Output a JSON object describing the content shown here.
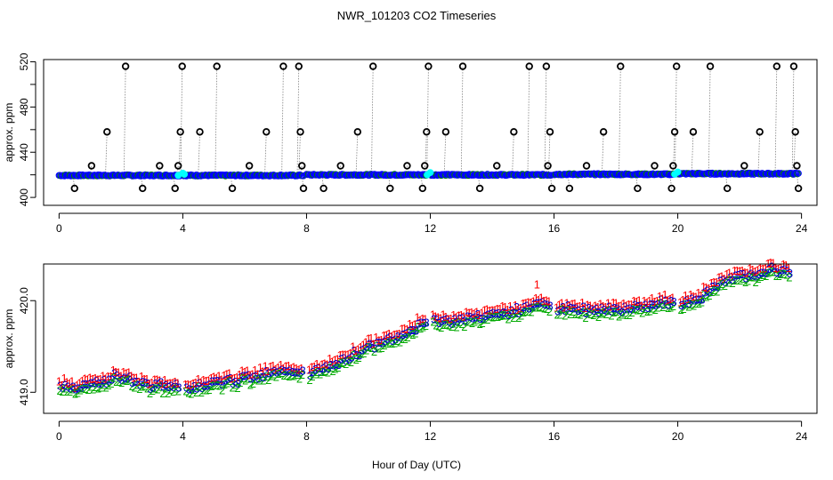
{
  "title": "NWR_101203  CO2 Timeseries",
  "xlabel": "Hour of Day (UTC)",
  "colors": {
    "sample_circle": "#000000",
    "trace_line": "#808080",
    "points_a": "#0000ff",
    "points_b": "#00ffff",
    "points_c": "#008000",
    "label_1": "#ff0000",
    "label_2": "#00aa00",
    "label_3": "#0000cc"
  },
  "chart_data": [
    {
      "type": "scatter",
      "panel": "top",
      "ylabel": "approx. ppm",
      "xlim": [
        -0.5,
        24.5
      ],
      "ylim": [
        393,
        522
      ],
      "x_ticks": [
        0,
        4,
        8,
        12,
        16,
        20,
        24
      ],
      "x_tick_labels": [
        "0",
        "4",
        "8",
        "12",
        "16",
        "20",
        "24"
      ],
      "y_ticks": [
        400,
        420,
        440,
        460,
        480,
        500,
        520
      ],
      "y_tick_labels": [
        "400",
        "",
        "440",
        "",
        "480",
        "",
        "520"
      ],
      "baseline_segments": [
        {
          "x_start": 0.0,
          "x_end": 3.9,
          "y": 419.5
        },
        {
          "x_start": 4.0,
          "x_end": 7.9,
          "y": 419.5
        },
        {
          "x_start": 8.0,
          "x_end": 11.9,
          "y": 420.0
        },
        {
          "x_start": 12.0,
          "x_end": 15.9,
          "y": 420.0
        },
        {
          "x_start": 16.0,
          "x_end": 19.9,
          "y": 420.5
        },
        {
          "x_start": 20.0,
          "x_end": 23.9,
          "y": 421.0
        }
      ],
      "sample_circles": {
        "x": [
          0.5,
          1.05,
          1.55,
          2.15,
          2.7,
          3.25,
          3.75,
          3.85,
          3.92,
          3.98,
          4.55,
          5.1,
          5.6,
          6.15,
          6.7,
          7.25,
          7.75,
          7.8,
          7.85,
          7.9,
          8.55,
          9.1,
          9.65,
          10.15,
          10.7,
          11.25,
          11.75,
          11.82,
          11.88,
          11.94,
          12.5,
          13.05,
          13.6,
          14.15,
          14.7,
          15.2,
          15.75,
          15.8,
          15.87,
          15.93,
          16.5,
          17.05,
          17.6,
          18.15,
          18.7,
          19.25,
          19.8,
          19.85,
          19.9,
          19.96,
          20.5,
          21.05,
          21.6,
          22.15,
          22.65,
          23.2,
          23.75,
          23.8,
          23.85,
          23.9
        ],
        "y": [
          408,
          428,
          458,
          516,
          408,
          428,
          408,
          428,
          458,
          516,
          458,
          516,
          408,
          428,
          458,
          516,
          516,
          458,
          428,
          408,
          408,
          428,
          458,
          516,
          408,
          428,
          408,
          428,
          458,
          516,
          458,
          516,
          408,
          428,
          458,
          516,
          516,
          428,
          458,
          408,
          408,
          428,
          458,
          516,
          408,
          428,
          408,
          428,
          458,
          516,
          458,
          516,
          408,
          428,
          458,
          516,
          516,
          458,
          428,
          408
        ]
      },
      "cyan_markers": {
        "x": [
          3.85,
          4.0,
          4.05,
          11.9,
          12.0,
          19.9,
          20.0
        ],
        "y": [
          419.5,
          421.5,
          420.5,
          420.0,
          422.0,
          420.5,
          422.5
        ]
      }
    },
    {
      "type": "scatter",
      "panel": "bottom",
      "ylabel": "approx. ppm",
      "xlim": [
        -0.5,
        24.5
      ],
      "ylim": [
        418.77,
        420.4
      ],
      "x_ticks": [
        0,
        4,
        8,
        12,
        16,
        20,
        24
      ],
      "x_tick_labels": [
        "0",
        "4",
        "8",
        "12",
        "16",
        "20",
        "24"
      ],
      "y_ticks": [
        419.0,
        420.0
      ],
      "y_tick_labels": [
        "419.0",
        "420.0"
      ],
      "series": [
        {
          "name": "1",
          "color": "#ff0000",
          "offset": 0.045
        },
        {
          "name": "2",
          "color": "#00aa00",
          "offset": -0.045
        },
        {
          "name": "3",
          "color": "#0000cc",
          "offset": 0.0
        }
      ],
      "gaps": [
        [
          3.9,
          4.05
        ],
        [
          7.9,
          8.05
        ],
        [
          11.9,
          12.05
        ],
        [
          15.9,
          16.05
        ],
        [
          19.9,
          20.05
        ]
      ],
      "trend": {
        "x": [
          0.0,
          0.6,
          1.2,
          1.8,
          2.3,
          3.0,
          3.8,
          4.0,
          5.0,
          6.0,
          7.0,
          7.8,
          8.0,
          9.0,
          10.0,
          11.0,
          11.8,
          12.0,
          13.0,
          14.0,
          15.0,
          15.5,
          15.8,
          16.0,
          17.0,
          18.0,
          19.0,
          19.8,
          20.0,
          20.5,
          21.0,
          21.5,
          22.0,
          22.5,
          23.0,
          23.6
        ],
        "y": [
          419.08,
          419.05,
          419.1,
          419.18,
          419.15,
          419.06,
          419.08,
          419.06,
          419.1,
          419.16,
          419.22,
          419.24,
          419.2,
          419.32,
          419.5,
          419.62,
          419.78,
          419.78,
          419.8,
          419.86,
          419.9,
          420.0,
          419.92,
          419.92,
          419.9,
          419.92,
          419.95,
          420.0,
          419.97,
          420.02,
          420.1,
          420.22,
          420.3,
          420.28,
          420.34,
          420.33
        ]
      },
      "jitter_amplitude": 0.035,
      "points_per_hour": 12
    }
  ]
}
